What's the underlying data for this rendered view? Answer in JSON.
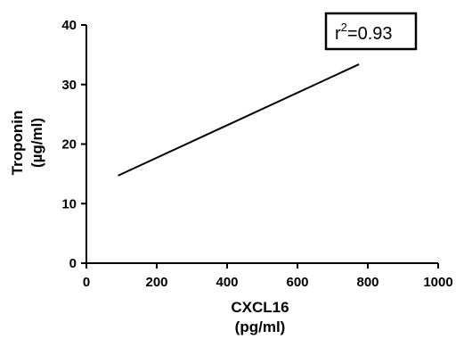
{
  "chart_data": {
    "type": "line",
    "x": [
      90,
      775
    ],
    "series": [
      {
        "values": [
          14.7,
          33.4
        ]
      }
    ],
    "xlabel": "CXCL16",
    "xlabel_unit": "(pg/ml)",
    "ylabel": "Troponin",
    "ylabel_unit": "(µg/ml)",
    "xlim": [
      0,
      1000
    ],
    "ylim": [
      0,
      40
    ],
    "xticks": [
      "0",
      "200",
      "400",
      "600",
      "800",
      "1000"
    ],
    "yticks": [
      "0",
      "10",
      "20",
      "30",
      "40"
    ],
    "grid": false,
    "annotation": {
      "prefix": "r",
      "superscript": "2",
      "suffix": "=0.93",
      "position": "top-right"
    }
  }
}
